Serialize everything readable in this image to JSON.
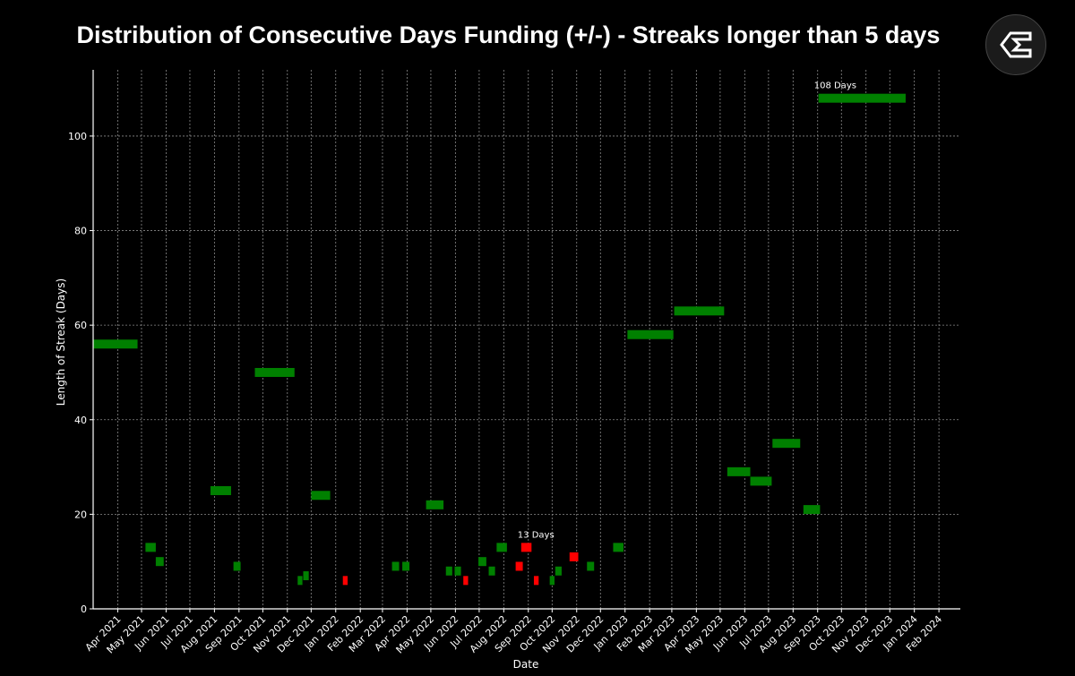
{
  "chart_data": {
    "type": "bar",
    "title": "Distribution of Consecutive Days Funding (+/-) - Streaks longer than 5 days",
    "xlabel": "Date",
    "ylabel": "Length of Streak (Days)",
    "xlim": [
      "2021-03-01",
      "2024-02-28"
    ],
    "ylim": [
      0,
      114
    ],
    "y_ticks": [
      0,
      20,
      40,
      60,
      80,
      100
    ],
    "x_ticks": [
      "Apr 2021",
      "May 2021",
      "Jun 2021",
      "Jul 2021",
      "Aug 2021",
      "Sep 2021",
      "Oct 2021",
      "Nov 2021",
      "Dec 2021",
      "Jan 2022",
      "Feb 2022",
      "Mar 2022",
      "Apr 2022",
      "May 2022",
      "Jun 2022",
      "Jul 2022",
      "Aug 2022",
      "Sep 2022",
      "Oct 2022",
      "Nov 2022",
      "Dec 2022",
      "Jan 2023",
      "Feb 2023",
      "Mar 2023",
      "Apr 2023",
      "May 2023",
      "Jun 2023",
      "Jul 2023",
      "Aug 2023",
      "Sep 2023",
      "Oct 2023",
      "Nov 2023",
      "Dec 2023",
      "Jan 2024",
      "Feb 2024"
    ],
    "grid": true,
    "colors": {
      "positive": "#008000",
      "negative": "#ff0000"
    },
    "annotations": [
      {
        "text": "108 Days",
        "date": "2023-09-01",
        "value": 108
      },
      {
        "text": "13 Days",
        "date": "2022-08-23",
        "value": 13
      }
    ],
    "streaks": [
      {
        "start": "2021-03-01",
        "end": "2021-04-26",
        "length": 56,
        "sign": "positive"
      },
      {
        "start": "2021-05-06",
        "end": "2021-05-19",
        "length": 13,
        "sign": "positive"
      },
      {
        "start": "2021-05-19",
        "end": "2021-05-29",
        "length": 10,
        "sign": "positive"
      },
      {
        "start": "2021-07-27",
        "end": "2021-08-22",
        "length": 25,
        "sign": "positive"
      },
      {
        "start": "2021-08-25",
        "end": "2021-09-03",
        "length": 9,
        "sign": "positive"
      },
      {
        "start": "2021-09-21",
        "end": "2021-11-10",
        "length": 50,
        "sign": "positive"
      },
      {
        "start": "2021-11-14",
        "end": "2021-11-20",
        "length": 6,
        "sign": "positive"
      },
      {
        "start": "2021-11-21",
        "end": "2021-11-28",
        "length": 7,
        "sign": "positive"
      },
      {
        "start": "2021-12-01",
        "end": "2021-12-25",
        "length": 24,
        "sign": "positive"
      },
      {
        "start": "2022-01-10",
        "end": "2022-01-16",
        "length": 6,
        "sign": "negative"
      },
      {
        "start": "2022-03-13",
        "end": "2022-03-22",
        "length": 9,
        "sign": "positive"
      },
      {
        "start": "2022-03-26",
        "end": "2022-04-04",
        "length": 9,
        "sign": "positive"
      },
      {
        "start": "2022-04-25",
        "end": "2022-05-17",
        "length": 22,
        "sign": "positive"
      },
      {
        "start": "2022-05-20",
        "end": "2022-05-28",
        "length": 8,
        "sign": "positive"
      },
      {
        "start": "2022-05-31",
        "end": "2022-06-08",
        "length": 8,
        "sign": "positive"
      },
      {
        "start": "2022-06-11",
        "end": "2022-06-17",
        "length": 6,
        "sign": "negative"
      },
      {
        "start": "2022-06-30",
        "end": "2022-07-10",
        "length": 10,
        "sign": "positive"
      },
      {
        "start": "2022-07-13",
        "end": "2022-07-21",
        "length": 8,
        "sign": "positive"
      },
      {
        "start": "2022-07-23",
        "end": "2022-08-05",
        "length": 13,
        "sign": "positive"
      },
      {
        "start": "2022-08-16",
        "end": "2022-08-25",
        "length": 9,
        "sign": "negative"
      },
      {
        "start": "2022-08-23",
        "end": "2022-09-05",
        "length": 13,
        "sign": "negative"
      },
      {
        "start": "2022-09-08",
        "end": "2022-09-14",
        "length": 6,
        "sign": "negative"
      },
      {
        "start": "2022-09-28",
        "end": "2022-10-04",
        "length": 6,
        "sign": "positive"
      },
      {
        "start": "2022-10-05",
        "end": "2022-10-13",
        "length": 8,
        "sign": "positive"
      },
      {
        "start": "2022-10-23",
        "end": "2022-11-03",
        "length": 11,
        "sign": "negative"
      },
      {
        "start": "2022-11-14",
        "end": "2022-11-23",
        "length": 9,
        "sign": "positive"
      },
      {
        "start": "2022-12-17",
        "end": "2022-12-30",
        "length": 13,
        "sign": "positive"
      },
      {
        "start": "2023-01-04",
        "end": "2023-03-03",
        "length": 58,
        "sign": "positive"
      },
      {
        "start": "2023-03-04",
        "end": "2023-05-06",
        "length": 63,
        "sign": "positive"
      },
      {
        "start": "2023-05-10",
        "end": "2023-06-08",
        "length": 29,
        "sign": "positive"
      },
      {
        "start": "2023-06-08",
        "end": "2023-07-05",
        "length": 27,
        "sign": "positive"
      },
      {
        "start": "2023-07-06",
        "end": "2023-08-10",
        "length": 35,
        "sign": "positive"
      },
      {
        "start": "2023-08-14",
        "end": "2023-09-04",
        "length": 21,
        "sign": "positive"
      },
      {
        "start": "2023-09-02",
        "end": "2023-12-21",
        "length": 108,
        "sign": "positive"
      }
    ]
  }
}
